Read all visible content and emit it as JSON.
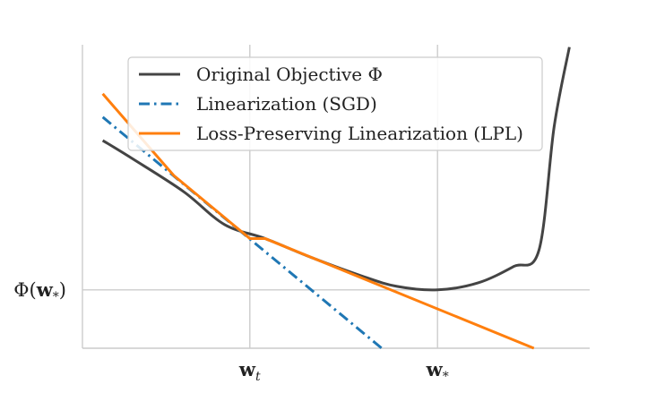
{
  "chart_data": {
    "type": "line",
    "title": "",
    "xlabel": "",
    "ylabel": "",
    "xlim": [
      0,
      1
    ],
    "ylim": [
      -0.25,
      1.05
    ],
    "grid": true,
    "legend_position": "top",
    "x_ticks": [
      {
        "value": 0.33,
        "main": "w",
        "sub": "t"
      },
      {
        "value": 0.7,
        "main": "w",
        "sub": "*"
      }
    ],
    "y_ticks": [
      {
        "value": 0.0,
        "prefix": "Φ(",
        "main": "w",
        "sub": "*",
        "suffix": ")"
      }
    ],
    "series": [
      {
        "name": "Original Objective Φ",
        "color": "#444444",
        "style": "solid",
        "x": [
          0.04,
          0.1,
          0.2,
          0.28,
          0.36,
          0.45,
          0.55,
          0.62,
          0.7,
          0.78,
          0.85,
          0.9,
          0.93,
          0.96
        ],
        "y": [
          0.64,
          0.56,
          0.42,
          0.28,
          0.22,
          0.14,
          0.06,
          0.015,
          0.0,
          0.03,
          0.1,
          0.17,
          0.7,
          1.04
        ]
      },
      {
        "name": "Linearization (SGD)",
        "color": "#1f77b4",
        "style": "dashdot",
        "x": [
          0.04,
          0.59
        ],
        "y": [
          0.74,
          -0.25
        ]
      },
      {
        "name": "Loss-Preserving Linearization (LPL)",
        "color": "#ff7f0e",
        "style": "solid",
        "x": [
          0.04,
          0.18,
          0.33,
          0.36,
          0.89
        ],
        "y": [
          0.84,
          0.49,
          0.22,
          0.22,
          -0.25
        ]
      }
    ]
  }
}
